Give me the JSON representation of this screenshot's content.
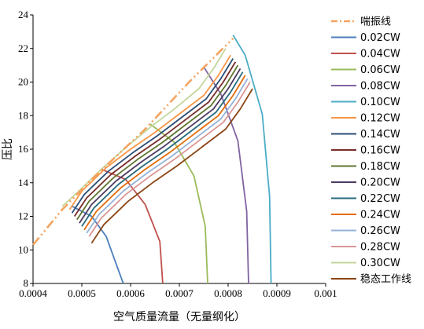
{
  "chart_data": {
    "type": "line",
    "xlabel": "空气质量流量（无量纲化）",
    "ylabel": "压比",
    "xlim": [
      0.0004,
      0.001
    ],
    "ylim": [
      8,
      24
    ],
    "x_ticks": [
      "0.0004",
      "0.0005",
      "0.0006",
      "0.0007",
      "0.0008",
      "0.0009",
      "0.001"
    ],
    "y_ticks": [
      "8",
      "10",
      "12",
      "14",
      "16",
      "18",
      "20",
      "22",
      "24"
    ],
    "grid": false,
    "legend_position": "right",
    "surge_line": {
      "name": "喘振线",
      "color": "#F4A460",
      "points": [
        [
          0.0004,
          10.3
        ],
        [
          0.00046,
          12.4
        ],
        [
          0.00052,
          14.2
        ],
        [
          0.00063,
          17.2
        ],
        [
          0.00072,
          20.0
        ],
        [
          0.00081,
          22.6
        ]
      ]
    },
    "speed_lines": [
      {
        "name": "0.02CW",
        "color": "#4A7EBB",
        "points": [
          [
            0.00048,
            12.6
          ],
          [
            0.00052,
            12.0
          ],
          [
            0.00055,
            10.8
          ],
          [
            0.00057,
            9.2
          ],
          [
            0.000585,
            8.0
          ]
        ]
      },
      {
        "name": "0.04CW",
        "color": "#C0504D",
        "points": [
          [
            0.00054,
            14.8
          ],
          [
            0.00059,
            14.2
          ],
          [
            0.00063,
            12.7
          ],
          [
            0.00066,
            10.5
          ],
          [
            0.000666,
            8.0
          ]
        ]
      },
      {
        "name": "0.06CW",
        "color": "#9BBB59",
        "points": [
          [
            0.00064,
            17.5
          ],
          [
            0.00069,
            16.4
          ],
          [
            0.00073,
            14.4
          ],
          [
            0.000753,
            11.4
          ],
          [
            0.000758,
            8.0
          ]
        ]
      },
      {
        "name": "0.08CW",
        "color": "#8064A2",
        "points": [
          [
            0.00075,
            20.9
          ],
          [
            0.000785,
            19.3
          ],
          [
            0.00082,
            16.5
          ],
          [
            0.000838,
            12.3
          ],
          [
            0.000842,
            8.0
          ]
        ]
      },
      {
        "name": "0.10CW",
        "color": "#4BACC6",
        "points": [
          [
            0.00081,
            22.8
          ],
          [
            0.000835,
            21.6
          ],
          [
            0.00087,
            18.1
          ],
          [
            0.000885,
            13.2
          ],
          [
            0.000888,
            8.0
          ]
        ]
      },
      {
        "name": "0.12CW",
        "color": "#F79646",
        "points": [
          [
            0.000475,
            12.4
          ],
          [
            0.0005,
            13.5
          ],
          [
            0.00055,
            14.9
          ],
          [
            0.0006,
            16.0
          ],
          [
            0.00065,
            17.0
          ],
          [
            0.0007,
            18.1
          ],
          [
            0.00075,
            19.2
          ],
          [
            0.00078,
            20.4
          ],
          [
            0.000805,
            21.6
          ]
        ]
      },
      {
        "name": "0.14CW",
        "color": "#2C4D75",
        "points": [
          [
            0.00048,
            12.2
          ],
          [
            0.000505,
            13.3
          ],
          [
            0.000555,
            14.7
          ],
          [
            0.000605,
            15.8
          ],
          [
            0.000655,
            16.8
          ],
          [
            0.000705,
            17.9
          ],
          [
            0.000755,
            19.0
          ],
          [
            0.000785,
            20.2
          ],
          [
            0.00081,
            21.4
          ]
        ]
      },
      {
        "name": "0.16CW",
        "color": "#772C2A",
        "points": [
          [
            0.000485,
            12.0
          ],
          [
            0.00051,
            13.1
          ],
          [
            0.00056,
            14.5
          ],
          [
            0.00061,
            15.6
          ],
          [
            0.00066,
            16.6
          ],
          [
            0.00071,
            17.7
          ],
          [
            0.00076,
            18.8
          ],
          [
            0.00079,
            20.0
          ],
          [
            0.000815,
            21.2
          ]
        ]
      },
      {
        "name": "0.18CW",
        "color": "#5F7530",
        "points": [
          [
            0.00049,
            11.8
          ],
          [
            0.000515,
            12.9
          ],
          [
            0.000565,
            14.3
          ],
          [
            0.000615,
            15.4
          ],
          [
            0.000665,
            16.4
          ],
          [
            0.000715,
            17.5
          ],
          [
            0.000765,
            18.6
          ],
          [
            0.000795,
            19.8
          ],
          [
            0.00082,
            21.0
          ]
        ]
      },
      {
        "name": "0.20CW",
        "color": "#4D3B62",
        "points": [
          [
            0.000495,
            11.6
          ],
          [
            0.00052,
            12.7
          ],
          [
            0.00057,
            14.1
          ],
          [
            0.00062,
            15.2
          ],
          [
            0.00067,
            16.2
          ],
          [
            0.00072,
            17.3
          ],
          [
            0.00077,
            18.4
          ],
          [
            0.0008,
            19.6
          ],
          [
            0.000825,
            20.8
          ]
        ]
      },
      {
        "name": "0.22CW",
        "color": "#276A7C",
        "points": [
          [
            0.0005,
            11.4
          ],
          [
            0.000525,
            12.5
          ],
          [
            0.000575,
            13.9
          ],
          [
            0.000625,
            15.0
          ],
          [
            0.000675,
            16.0
          ],
          [
            0.000725,
            17.1
          ],
          [
            0.000775,
            18.2
          ],
          [
            0.000805,
            19.4
          ],
          [
            0.00083,
            20.6
          ]
        ]
      },
      {
        "name": "0.24CW",
        "color": "#E36C09",
        "points": [
          [
            0.000505,
            11.2
          ],
          [
            0.00053,
            12.3
          ],
          [
            0.00058,
            13.7
          ],
          [
            0.00063,
            14.8
          ],
          [
            0.00068,
            15.8
          ],
          [
            0.00073,
            16.9
          ],
          [
            0.00078,
            18.0
          ],
          [
            0.00081,
            19.2
          ],
          [
            0.000835,
            20.4
          ]
        ]
      },
      {
        "name": "0.26CW",
        "color": "#95B3D7",
        "points": [
          [
            0.00051,
            11.0
          ],
          [
            0.000535,
            12.1
          ],
          [
            0.000585,
            13.5
          ],
          [
            0.000635,
            14.6
          ],
          [
            0.000685,
            15.6
          ],
          [
            0.000735,
            16.7
          ],
          [
            0.000785,
            17.8
          ],
          [
            0.000815,
            19.0
          ],
          [
            0.00084,
            20.2
          ]
        ]
      },
      {
        "name": "0.28CW",
        "color": "#D99694",
        "points": [
          [
            0.000515,
            10.8
          ],
          [
            0.00054,
            11.9
          ],
          [
            0.00059,
            13.3
          ],
          [
            0.00064,
            14.4
          ],
          [
            0.00069,
            15.4
          ],
          [
            0.00074,
            16.5
          ],
          [
            0.00079,
            17.6
          ],
          [
            0.00082,
            18.8
          ],
          [
            0.000845,
            20.0
          ]
        ]
      },
      {
        "name": "0.30CW",
        "color": "#C3D69B",
        "points": [
          [
            0.00046,
            12.6
          ],
          [
            0.00049,
            13.4
          ],
          [
            0.00054,
            14.8
          ],
          [
            0.00059,
            16.1
          ],
          [
            0.00064,
            17.3
          ],
          [
            0.00069,
            18.4
          ],
          [
            0.00074,
            19.6
          ],
          [
            0.00077,
            20.8
          ],
          [
            0.000795,
            22.0
          ]
        ]
      },
      {
        "name": "稳态工作线",
        "color": "#8B4513",
        "points": [
          [
            0.00052,
            10.4
          ],
          [
            0.000545,
            11.5
          ],
          [
            0.000595,
            12.9
          ],
          [
            0.000645,
            14.0
          ],
          [
            0.000695,
            15.0
          ],
          [
            0.000745,
            16.1
          ],
          [
            0.000795,
            17.2
          ],
          [
            0.000825,
            18.4
          ],
          [
            0.00085,
            19.6
          ]
        ]
      }
    ]
  }
}
